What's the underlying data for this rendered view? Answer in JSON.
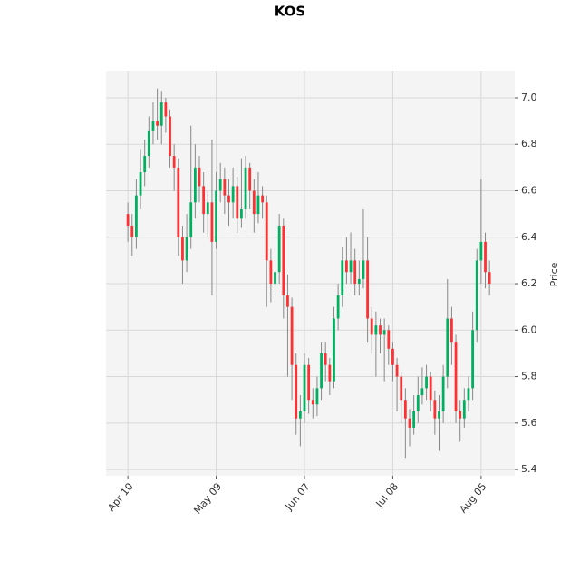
{
  "chart_data": {
    "type": "candlestick",
    "title": "KOS",
    "y_label": "Price",
    "up_color": "#00b060",
    "down_color": "#fe3032",
    "wick_color": "#888888",
    "open": [
      6.5,
      6.45,
      6.4,
      6.58,
      6.68,
      6.75,
      6.86,
      6.9,
      6.88,
      6.98,
      6.92,
      6.75,
      6.7,
      6.4,
      6.3,
      6.4,
      6.55,
      6.7,
      6.62,
      6.5,
      6.55,
      6.38,
      6.6,
      6.65,
      6.58,
      6.55,
      6.62,
      6.48,
      6.52,
      6.7,
      6.6,
      6.5,
      6.58,
      6.55,
      6.3,
      6.2,
      6.25,
      6.45,
      6.15,
      6.1,
      5.85,
      5.62,
      5.65,
      5.85,
      5.7,
      5.68,
      5.75,
      5.9,
      5.85,
      5.78,
      6.05,
      6.15,
      6.3,
      6.25,
      6.3,
      6.2,
      6.22,
      6.3,
      6.05,
      5.98,
      6.02,
      5.98,
      6.0,
      5.92,
      5.85,
      5.8,
      5.7,
      5.62,
      5.58,
      5.65,
      5.72,
      5.75,
      5.8,
      5.7,
      5.62,
      5.65,
      5.8,
      6.05,
      5.95,
      5.65,
      5.62,
      5.7,
      5.75,
      6.0,
      6.3,
      6.38,
      6.25
    ],
    "high": [
      6.55,
      6.5,
      6.65,
      6.78,
      6.82,
      6.92,
      6.98,
      7.04,
      7.03,
      7.0,
      6.95,
      6.8,
      6.74,
      6.45,
      6.5,
      6.88,
      6.8,
      6.75,
      6.68,
      6.6,
      6.82,
      6.68,
      6.72,
      6.7,
      6.65,
      6.7,
      6.66,
      6.74,
      6.75,
      6.72,
      6.65,
      6.68,
      6.62,
      6.58,
      6.35,
      6.3,
      6.5,
      6.48,
      6.24,
      6.14,
      5.9,
      5.72,
      5.9,
      5.88,
      5.75,
      5.8,
      5.95,
      5.95,
      5.88,
      6.1,
      6.2,
      6.36,
      6.4,
      6.42,
      6.35,
      6.3,
      6.52,
      6.4,
      6.1,
      6.08,
      6.05,
      6.05,
      6.02,
      5.95,
      5.88,
      5.82,
      5.75,
      5.66,
      5.72,
      5.8,
      5.84,
      5.85,
      5.82,
      5.74,
      5.72,
      5.85,
      6.22,
      6.1,
      5.98,
      5.7,
      5.75,
      5.8,
      6.08,
      6.35,
      6.65,
      6.42,
      6.3
    ],
    "low": [
      6.38,
      6.32,
      6.35,
      6.52,
      6.62,
      6.7,
      6.8,
      6.82,
      6.8,
      6.85,
      6.7,
      6.6,
      6.32,
      6.2,
      6.25,
      6.35,
      6.48,
      6.55,
      6.42,
      6.4,
      6.15,
      6.35,
      6.55,
      6.5,
      6.45,
      6.48,
      6.42,
      6.44,
      6.48,
      6.52,
      6.42,
      6.46,
      6.48,
      6.1,
      6.12,
      6.15,
      6.2,
      6.05,
      5.8,
      5.7,
      5.55,
      5.5,
      5.6,
      5.64,
      5.62,
      5.63,
      5.7,
      5.78,
      5.72,
      5.75,
      6.0,
      6.1,
      6.2,
      6.2,
      6.15,
      6.15,
      6.18,
      5.95,
      5.9,
      5.8,
      5.9,
      5.78,
      5.85,
      5.78,
      5.65,
      5.6,
      5.45,
      5.5,
      5.55,
      5.6,
      5.68,
      5.7,
      5.65,
      5.55,
      5.48,
      5.6,
      5.75,
      5.85,
      5.6,
      5.52,
      5.58,
      5.65,
      5.7,
      5.95,
      6.2,
      6.18,
      6.15
    ],
    "close": [
      6.45,
      6.4,
      6.58,
      6.68,
      6.75,
      6.86,
      6.9,
      6.88,
      6.98,
      6.92,
      6.75,
      6.7,
      6.4,
      6.3,
      6.4,
      6.55,
      6.7,
      6.62,
      6.5,
      6.55,
      6.38,
      6.6,
      6.65,
      6.58,
      6.55,
      6.62,
      6.48,
      6.52,
      6.7,
      6.6,
      6.5,
      6.58,
      6.55,
      6.3,
      6.2,
      6.25,
      6.45,
      6.15,
      6.1,
      5.85,
      5.62,
      5.65,
      5.85,
      5.7,
      5.68,
      5.75,
      5.9,
      5.85,
      5.78,
      6.05,
      6.15,
      6.3,
      6.25,
      6.3,
      6.2,
      6.22,
      6.3,
      6.05,
      5.98,
      6.02,
      5.98,
      6.0,
      5.92,
      5.85,
      5.8,
      5.7,
      5.62,
      5.58,
      5.65,
      5.72,
      5.75,
      5.8,
      5.7,
      5.62,
      5.65,
      5.8,
      6.05,
      5.95,
      5.65,
      5.62,
      5.7,
      5.75,
      6.0,
      6.3,
      6.38,
      6.25,
      6.2
    ],
    "xlim": [
      -5.2,
      92
    ],
    "xticks": [
      {
        "value": 0,
        "label": "Apr 10"
      },
      {
        "value": 21,
        "label": "May 09"
      },
      {
        "value": 42,
        "label": "Jun 07"
      },
      {
        "value": 63,
        "label": "Jul 08"
      },
      {
        "value": 84,
        "label": "Aug 05"
      }
    ],
    "ylim": [
      5.373,
      7.117
    ],
    "yticks": [
      {
        "value": 5.4,
        "label": "5.4"
      },
      {
        "value": 5.6,
        "label": "5.6"
      },
      {
        "value": 5.8,
        "label": "5.8"
      },
      {
        "value": 6.0,
        "label": "6.0"
      },
      {
        "value": 6.2,
        "label": "6.2"
      },
      {
        "value": 6.4,
        "label": "6.4"
      },
      {
        "value": 6.6,
        "label": "6.6"
      },
      {
        "value": 6.8,
        "label": "6.8"
      },
      {
        "value": 7.0,
        "label": "7.0"
      }
    ],
    "grid": true
  }
}
